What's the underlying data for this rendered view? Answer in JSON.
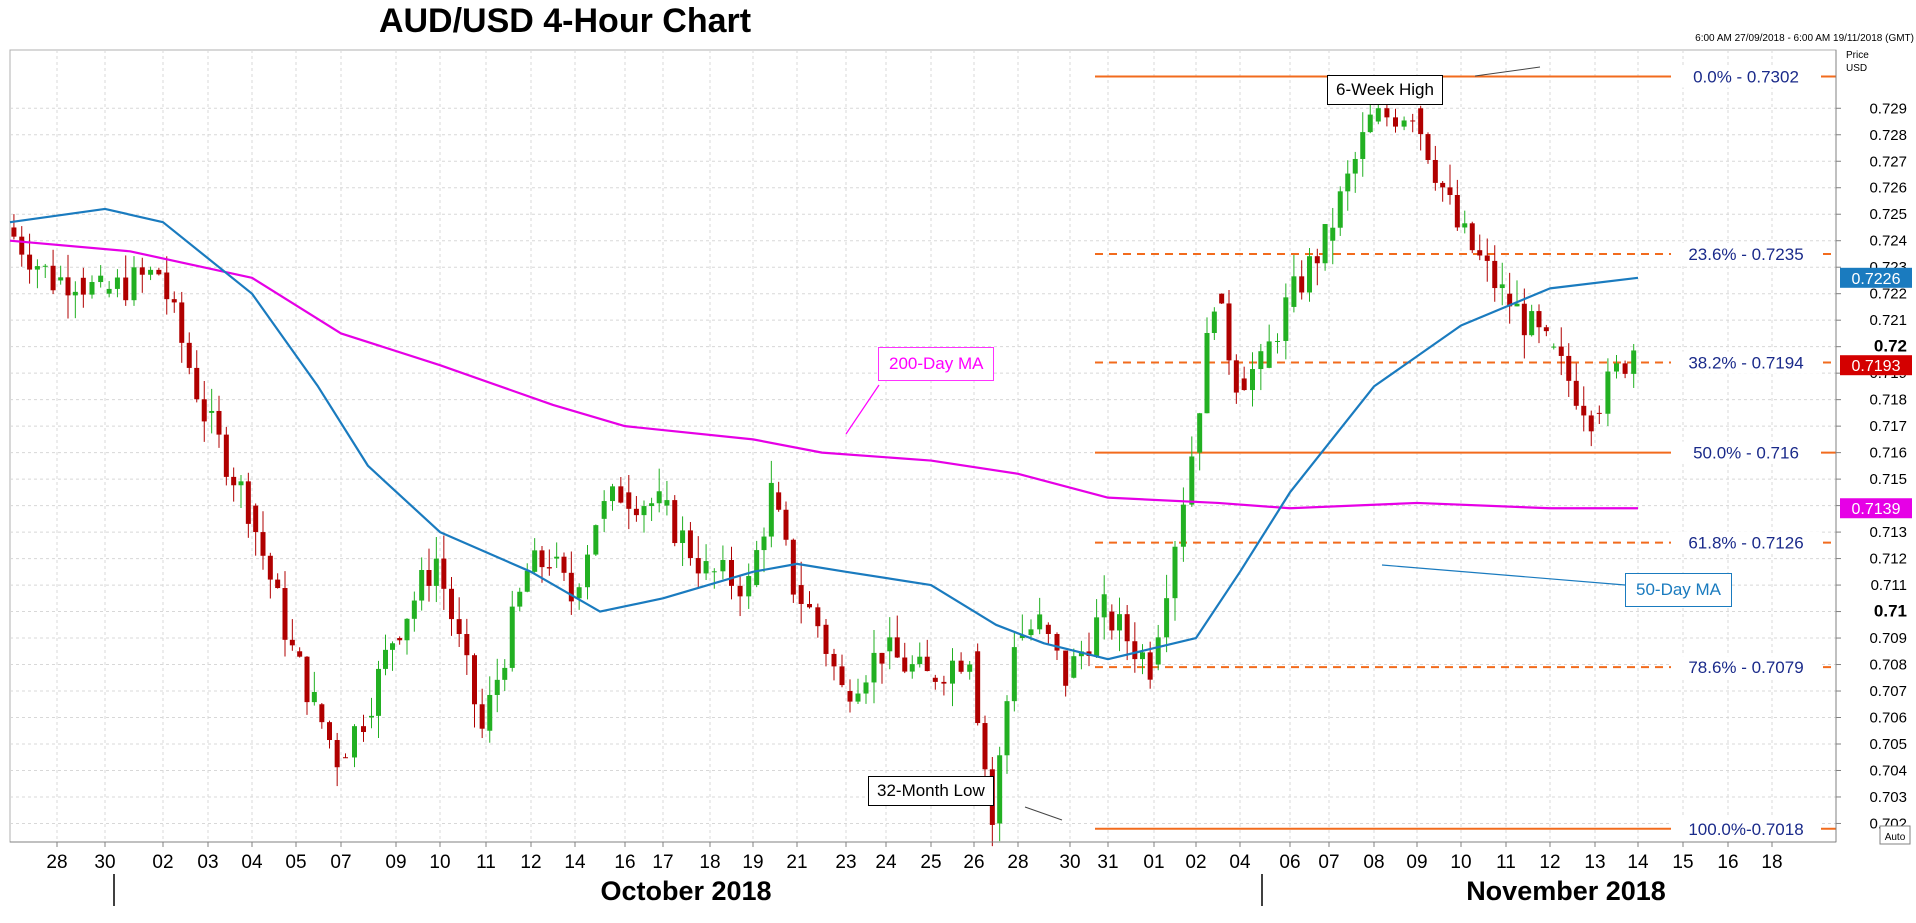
{
  "title": "AUD/USD 4-Hour Chart",
  "period": "6:00 AM 27/09/2018 - 6:00 AM 19/11/2018 (GMT)",
  "axis": {
    "price_header": [
      "Price",
      "USD"
    ],
    "auto_label": "Auto",
    "y_ticks": [
      "0.729",
      "0.728",
      "0.727",
      "0.726",
      "0.725",
      "0.724",
      "0.723",
      "0.722",
      "0.721",
      "0.72",
      "0.719",
      "0.718",
      "0.717",
      "0.716",
      "0.715",
      "0.714",
      "0.713",
      "0.712",
      "0.711",
      "0.71",
      "0.709",
      "0.708",
      "0.707",
      "0.706",
      "0.705",
      "0.704",
      "0.703",
      "0.702"
    ],
    "y_bold": [
      "0.72",
      "0.71"
    ],
    "x_days": [
      "28",
      "30",
      "02",
      "03",
      "04",
      "05",
      "07",
      "09",
      "10",
      "11",
      "12",
      "14",
      "16",
      "17",
      "18",
      "19",
      "21",
      "23",
      "24",
      "25",
      "26",
      "28",
      "30",
      "31",
      "01",
      "02",
      "04",
      "06",
      "07",
      "08",
      "09",
      "10",
      "11",
      "12",
      "13",
      "14",
      "15",
      "16",
      "18"
    ],
    "months": [
      {
        "label": "October 2018",
        "bar_day": "30"
      },
      {
        "label": "November 2018",
        "bar_day": "01"
      }
    ]
  },
  "price_tags": [
    {
      "value": "0.7226",
      "price": 0.7226,
      "color": "#1a7bbf"
    },
    {
      "value": "0.7193",
      "price": 0.7193,
      "color": "#d40000"
    },
    {
      "value": "0.7139",
      "price": 0.7139,
      "color": "#e600e6"
    }
  ],
  "annotations": {
    "ma200": "200-Day MA",
    "ma50": "50-Day MA",
    "high": "6-Week High",
    "low": "32-Month Low"
  },
  "chart_data": {
    "type": "candlestick",
    "title": "AUD/USD 4-Hour Chart",
    "x_range": [
      "2018-09-27",
      "2018-11-19"
    ],
    "ylim": [
      0.7013,
      0.7312
    ],
    "grid": true,
    "fib_levels": [
      {
        "label": "0.0% - 0.7302",
        "value": 0.7302,
        "style": "solid"
      },
      {
        "label": "23.6% - 0.7235",
        "value": 0.7235,
        "style": "dashed"
      },
      {
        "label": "38.2% - 0.7194",
        "value": 0.7194,
        "style": "dashed"
      },
      {
        "label": "50.0% - 0.716",
        "value": 0.716,
        "style": "solid"
      },
      {
        "label": "61.8% - 0.7126",
        "value": 0.7126,
        "style": "dashed"
      },
      {
        "label": "78.6% - 0.7079",
        "value": 0.7079,
        "style": "dashed"
      },
      {
        "label": "100.0%-0.7018",
        "value": 0.7018,
        "style": "solid"
      }
    ],
    "series": [
      {
        "name": "AUD/USD",
        "kind": "candles",
        "up_color": "#22b022",
        "down_color": "#b00000",
        "keyframes": [
          {
            "date": "2018-09-27",
            "price": 0.7245
          },
          {
            "date": "2018-09-28",
            "price": 0.7225
          },
          {
            "date": "2018-09-29",
            "price": 0.7226
          },
          {
            "date": "2018-09-30",
            "price": 0.722
          },
          {
            "date": "2018-10-02",
            "price": 0.7228
          },
          {
            "date": "2018-10-03",
            "price": 0.7175
          },
          {
            "date": "2018-10-04",
            "price": 0.714
          },
          {
            "date": "2018-10-05",
            "price": 0.7085
          },
          {
            "date": "2018-10-06",
            "price": 0.7065
          },
          {
            "date": "2018-10-07",
            "price": 0.7045
          },
          {
            "date": "2018-10-08",
            "price": 0.706
          },
          {
            "date": "2018-10-09",
            "price": 0.709
          },
          {
            "date": "2018-10-10",
            "price": 0.712
          },
          {
            "date": "2018-10-11",
            "price": 0.7055
          },
          {
            "date": "2018-10-12",
            "price": 0.7115
          },
          {
            "date": "2018-10-13",
            "price": 0.712
          },
          {
            "date": "2018-10-14",
            "price": 0.7105
          },
          {
            "date": "2018-10-15",
            "price": 0.7135
          },
          {
            "date": "2018-10-16",
            "price": 0.7145
          },
          {
            "date": "2018-10-17",
            "price": 0.714
          },
          {
            "date": "2018-10-18",
            "price": 0.7115
          },
          {
            "date": "2018-10-19",
            "price": 0.711
          },
          {
            "date": "2018-10-20",
            "price": 0.7145
          },
          {
            "date": "2018-10-21",
            "price": 0.711
          },
          {
            "date": "2018-10-22",
            "price": 0.7095
          },
          {
            "date": "2018-10-23",
            "price": 0.707
          },
          {
            "date": "2018-10-24",
            "price": 0.7085
          },
          {
            "date": "2018-10-25",
            "price": 0.7075
          },
          {
            "date": "2018-10-26",
            "price": 0.7085
          },
          {
            "date": "2018-10-27",
            "price": 0.702
          },
          {
            "date": "2018-10-28",
            "price": 0.709
          },
          {
            "date": "2018-10-29",
            "price": 0.7095
          },
          {
            "date": "2018-10-30",
            "price": 0.7075
          },
          {
            "date": "2018-10-31",
            "price": 0.71
          },
          {
            "date": "2018-11-01",
            "price": 0.708
          },
          {
            "date": "2018-11-02",
            "price": 0.716
          },
          {
            "date": "2018-11-03",
            "price": 0.722
          },
          {
            "date": "2018-11-04",
            "price": 0.7188
          },
          {
            "date": "2018-11-05",
            "price": 0.7192
          },
          {
            "date": "2018-11-06",
            "price": 0.7215
          },
          {
            "date": "2018-11-07",
            "price": 0.724
          },
          {
            "date": "2018-11-08",
            "price": 0.7285
          },
          {
            "date": "2018-11-09",
            "price": 0.729
          },
          {
            "date": "2018-11-10",
            "price": 0.7245
          },
          {
            "date": "2018-11-11",
            "price": 0.722
          },
          {
            "date": "2018-11-12",
            "price": 0.72
          },
          {
            "date": "2018-11-13",
            "price": 0.7175
          },
          {
            "date": "2018-11-14",
            "price": 0.72
          }
        ]
      },
      {
        "name": "200-Day MA",
        "kind": "line",
        "color": "#e600e6",
        "points": [
          [
            "2018-09-27",
            0.724
          ],
          [
            "2018-10-01",
            0.7236
          ],
          [
            "2018-10-04",
            0.7226
          ],
          [
            "2018-10-07",
            0.7205
          ],
          [
            "2018-10-10",
            0.7193
          ],
          [
            "2018-10-13",
            0.7178
          ],
          [
            "2018-10-16",
            0.717
          ],
          [
            "2018-10-19",
            0.7165
          ],
          [
            "2018-10-22",
            0.716
          ],
          [
            "2018-10-25",
            0.7157
          ],
          [
            "2018-10-28",
            0.7152
          ],
          [
            "2018-10-31",
            0.7143
          ],
          [
            "2018-11-03",
            0.7141
          ],
          [
            "2018-11-06",
            0.7139
          ],
          [
            "2018-11-09",
            0.7141
          ],
          [
            "2018-11-12",
            0.7139
          ],
          [
            "2018-11-14",
            0.7139
          ]
        ]
      },
      {
        "name": "50-Day MA",
        "kind": "line",
        "color": "#1a7bbf",
        "points": [
          [
            "2018-09-27",
            0.7247
          ],
          [
            "2018-09-30",
            0.7252
          ],
          [
            "2018-10-02",
            0.7247
          ],
          [
            "2018-10-04",
            0.722
          ],
          [
            "2018-10-06",
            0.7185
          ],
          [
            "2018-10-08",
            0.7155
          ],
          [
            "2018-10-10",
            0.713
          ],
          [
            "2018-10-12",
            0.7115
          ],
          [
            "2018-10-15",
            0.71
          ],
          [
            "2018-10-17",
            0.7105
          ],
          [
            "2018-10-19",
            0.7115
          ],
          [
            "2018-10-21",
            0.7118
          ],
          [
            "2018-10-23",
            0.7115
          ],
          [
            "2018-10-25",
            0.711
          ],
          [
            "2018-10-27",
            0.7095
          ],
          [
            "2018-10-29",
            0.7088
          ],
          [
            "2018-10-31",
            0.7082
          ],
          [
            "2018-11-02",
            0.709
          ],
          [
            "2018-11-04",
            0.7115
          ],
          [
            "2018-11-06",
            0.7145
          ],
          [
            "2018-11-08",
            0.7185
          ],
          [
            "2018-11-10",
            0.7208
          ],
          [
            "2018-11-12",
            0.7222
          ],
          [
            "2018-11-14",
            0.7226
          ]
        ]
      }
    ]
  }
}
